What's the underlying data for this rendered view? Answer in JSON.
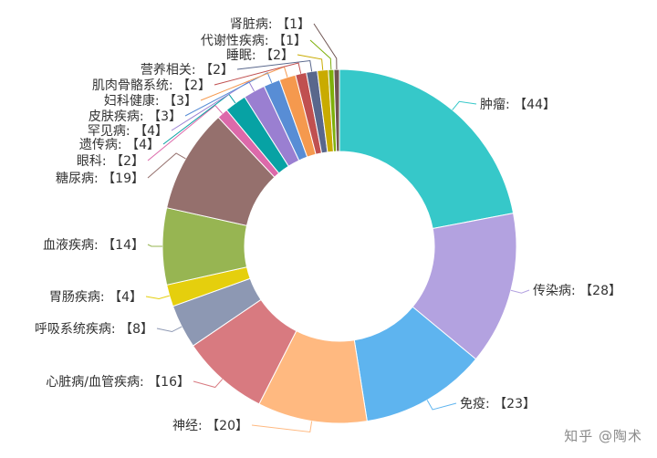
{
  "chart_data": {
    "type": "pie",
    "donut": true,
    "title": "",
    "label_format": "{name}: 【{value}】",
    "slices": [
      {
        "name": "肿瘤",
        "value": 44,
        "color": "#36c8c9"
      },
      {
        "name": "传染病",
        "value": 28,
        "color": "#b3a2e0"
      },
      {
        "name": "免疫",
        "value": 23,
        "color": "#5eb4ef"
      },
      {
        "name": "神经",
        "value": 20,
        "color": "#ffb980"
      },
      {
        "name": "心脏病/血管疾病",
        "value": 16,
        "color": "#d87a80"
      },
      {
        "name": "呼吸系统疾病",
        "value": 8,
        "color": "#8d98b3"
      },
      {
        "name": "胃肠疾病",
        "value": 4,
        "color": "#e5cf0d"
      },
      {
        "name": "血液疾病",
        "value": 14,
        "color": "#97b552"
      },
      {
        "name": "糖尿病",
        "value": 19,
        "color": "#95706d"
      },
      {
        "name": "眼科",
        "value": 2,
        "color": "#dc69aa"
      },
      {
        "name": "遗传病",
        "value": 4,
        "color": "#07a2a4"
      },
      {
        "name": "罕见病",
        "value": 4,
        "color": "#9a7fd1"
      },
      {
        "name": "皮肤疾病",
        "value": 3,
        "color": "#588dd5"
      },
      {
        "name": "妇科健康",
        "value": 3,
        "color": "#f5994e"
      },
      {
        "name": "肌肉骨骼系统",
        "value": 2,
        "color": "#c05050"
      },
      {
        "name": "营养相关",
        "value": 2,
        "color": "#59678c"
      },
      {
        "name": "睡眠",
        "value": 2,
        "color": "#c9ab00"
      },
      {
        "name": "代谢性疾病",
        "value": 1,
        "color": "#7eb00a"
      },
      {
        "name": "肾脏病",
        "value": 1,
        "color": "#6f5553"
      }
    ]
  },
  "watermark": "知乎 @陶术"
}
